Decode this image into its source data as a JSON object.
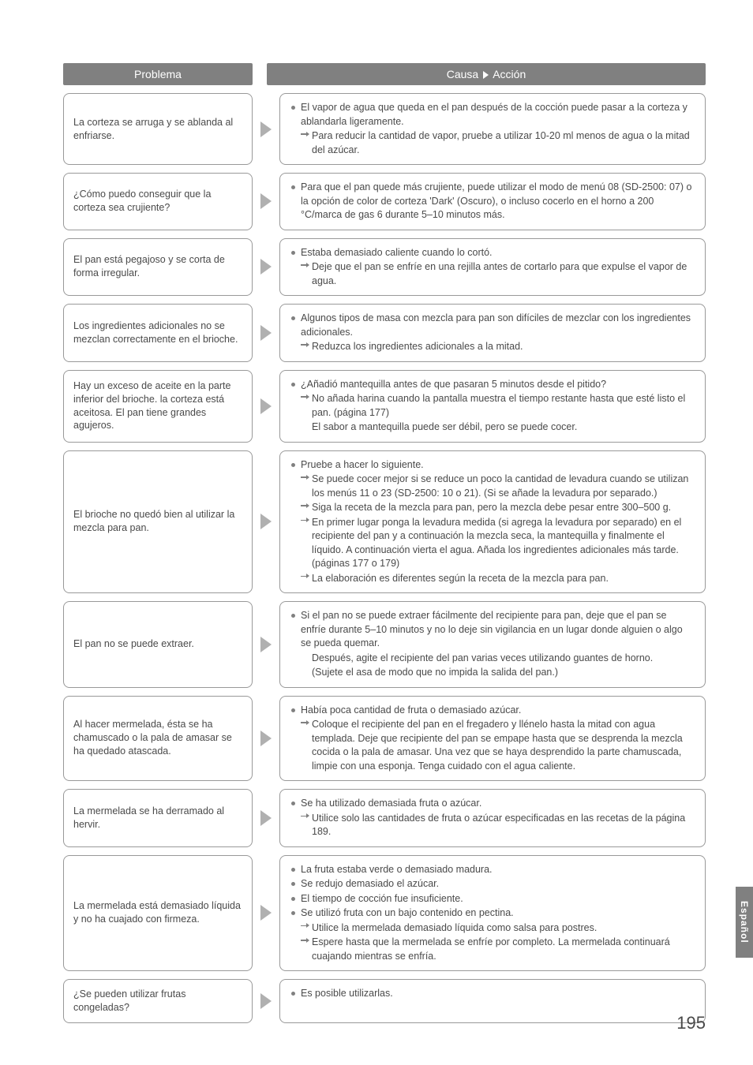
{
  "headers": {
    "problem": "Problema",
    "cause": "Causa",
    "action": "Acción"
  },
  "side_tab": "Español",
  "page_number": "195",
  "rows": [
    {
      "problem": "La corteza se arruga y se ablanda al enfriarse.",
      "causes": [
        {
          "type": "bullet",
          "text": "El vapor de agua que queda en el pan después de la cocción puede pasar a la corteza y ablandarla ligeramente."
        },
        {
          "type": "arrow",
          "text": "Para reducir la cantidad de vapor, pruebe a utilizar 10-20 ml menos de agua o la mitad del azúcar."
        }
      ]
    },
    {
      "problem": "¿Cómo puedo conseguir que la corteza sea crujiente?",
      "causes": [
        {
          "type": "bullet",
          "text": "Para que el pan quede más crujiente, puede utilizar el modo de menú 08 (SD-2500: 07) o la opción de color de corteza 'Dark' (Oscuro), o incluso cocerlo en el horno a 200 °C/marca de gas 6 durante 5–10 minutos más."
        }
      ]
    },
    {
      "problem": "El pan está pegajoso y se corta de forma irregular.",
      "causes": [
        {
          "type": "bullet",
          "text": "Estaba demasiado caliente cuando lo cortó."
        },
        {
          "type": "arrow",
          "text": "Deje que el pan se enfríe en una rejilla antes de cortarlo para que expulse el vapor de agua."
        }
      ]
    },
    {
      "problem": "Los ingredientes adicionales no se mezclan correctamente en el brioche.",
      "causes": [
        {
          "type": "bullet",
          "text": "Algunos tipos de masa con mezcla para pan son difíciles de mezclar con los ingredientes adicionales."
        },
        {
          "type": "arrow",
          "text": "Reduzca los ingredientes adicionales a la mitad."
        }
      ]
    },
    {
      "problem": "Hay un exceso de aceite en la parte inferior del brioche.\nla corteza está aceitosa.\nEl pan tiene grandes agujeros.",
      "causes": [
        {
          "type": "bullet",
          "text": "¿Añadió mantequilla antes de que pasaran 5 minutos desde el pitido?"
        },
        {
          "type": "arrow",
          "text": "No añada harina cuando la pantalla muestra el tiempo restante hasta que esté listo el pan. (página 177)"
        },
        {
          "type": "indent",
          "text": "El sabor a mantequilla puede ser débil, pero se puede cocer."
        }
      ]
    },
    {
      "problem": "El brioche no quedó bien al utilizar la mezcla para pan.",
      "causes": [
        {
          "type": "bullet",
          "text": "Pruebe a hacer lo siguiente."
        },
        {
          "type": "arrow",
          "text": "Se puede cocer mejor si se reduce un poco la cantidad de levadura cuando se utilizan los menús 11 o 23 (SD-2500: 10 o 21). (Si se añade la levadura por separado.)"
        },
        {
          "type": "arrow",
          "text": "Siga la receta de la mezcla para pan, pero la mezcla debe pesar entre 300–500 g."
        },
        {
          "type": "arrow",
          "text": "En primer lugar ponga la levadura medida (si agrega la levadura por separado) en el recipiente del pan y a continuación la mezcla seca, la mantequilla y finalmente el líquido. A continuación vierta el agua. Añada los ingredientes adicionales más tarde. (páginas 177 o 179)"
        },
        {
          "type": "arrow",
          "text": "La elaboración es diferentes según la receta de la mezcla para pan."
        }
      ]
    },
    {
      "problem": "El pan no se puede extraer.",
      "causes": [
        {
          "type": "bullet",
          "text": "Si el pan no se puede extraer fácilmente del recipiente para pan, deje que el pan se enfríe durante 5–10 minutos y no lo deje sin vigilancia en un lugar donde alguien o algo se pueda quemar."
        },
        {
          "type": "indent",
          "text": "Después, agite el recipiente del pan varias veces utilizando guantes de horno."
        },
        {
          "type": "indent",
          "text": "(Sujete el asa de modo que no impida la salida del pan.)"
        }
      ]
    },
    {
      "problem": "Al hacer mermelada, ésta se ha chamuscado o la pala de amasar se ha quedado atascada.",
      "causes": [
        {
          "type": "bullet",
          "text": "Había poca cantidad de fruta o demasiado azúcar."
        },
        {
          "type": "arrow",
          "text": "Coloque el recipiente del pan en el fregadero y llénelo hasta la mitad con agua templada. Deje que recipiente del pan se empape hasta que se desprenda la mezcla cocida o la pala de amasar. Una vez que se haya desprendido la parte chamuscada, limpie con una esponja. Tenga cuidado con el agua caliente."
        }
      ]
    },
    {
      "problem": "La mermelada se ha derramado al hervir.",
      "causes": [
        {
          "type": "bullet",
          "text": "Se ha utilizado demasiada fruta o azúcar."
        },
        {
          "type": "arrow",
          "text": "Utilice solo las cantidades de fruta o azúcar especificadas en las recetas de la página 189."
        }
      ]
    },
    {
      "problem": "La mermelada está demasiado líquida y no ha cuajado con firmeza.",
      "causes": [
        {
          "type": "bullet",
          "text": "La fruta estaba verde o demasiado madura."
        },
        {
          "type": "bullet",
          "text": "Se redujo demasiado el azúcar."
        },
        {
          "type": "bullet",
          "text": "El tiempo de cocción fue insuficiente."
        },
        {
          "type": "bullet",
          "text": "Se utilizó fruta con un bajo contenido en pectina."
        },
        {
          "type": "arrow",
          "text": "Utilice la mermelada demasiado líquida como salsa para postres."
        },
        {
          "type": "arrow",
          "text": "Espere hasta que la mermelada se enfríe por completo. La mermelada continuará cuajando mientras se enfría."
        }
      ]
    },
    {
      "problem": "¿Se pueden utilizar frutas congeladas?",
      "causes": [
        {
          "type": "bullet",
          "text": "Es posible utilizarlas."
        }
      ]
    }
  ]
}
